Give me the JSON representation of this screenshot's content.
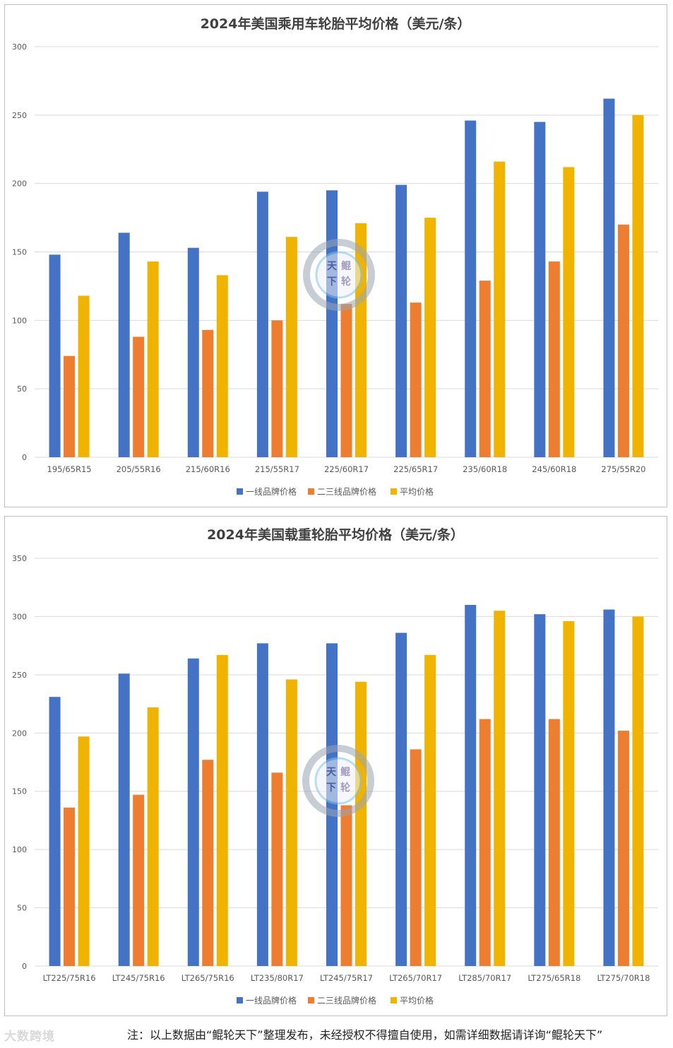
{
  "colors": {
    "tier1": "#4472C4",
    "tier23": "#ED7D31",
    "average": "#F0B400"
  },
  "chart_data": [
    {
      "type": "bar",
      "title": "2024年美国乘用车轮胎平均价格（美元/条）",
      "categories": [
        "195/65R15",
        "205/55R16",
        "215/60R16",
        "215/55R17",
        "225/60R17",
        "225/65R17",
        "235/60R18",
        "245/60R18",
        "275/55R20"
      ],
      "series": [
        {
          "name": "一线品牌价格",
          "values": [
            148,
            164,
            153,
            194,
            195,
            199,
            246,
            245,
            262
          ]
        },
        {
          "name": "二三线品牌价格",
          "values": [
            74,
            88,
            93,
            100,
            112,
            113,
            129,
            143,
            170
          ]
        },
        {
          "name": "平均价格",
          "values": [
            118,
            143,
            133,
            161,
            171,
            175,
            216,
            212,
            250
          ]
        }
      ],
      "y_ticks": [
        "0",
        "50",
        "100",
        "150",
        "200",
        "250",
        "300"
      ],
      "ylim": [
        0,
        300
      ],
      "grid": true,
      "legend_position": "bottom"
    },
    {
      "type": "bar",
      "title": "2024年美国载重轮胎平均价格（美元/条）",
      "categories": [
        "LT225/75R16",
        "LT245/75R16",
        "LT265/75R16",
        "LT235/80R17",
        "LT245/75R17",
        "LT265/70R17",
        "LT285/70R17",
        "LT275/65R18",
        "LT275/70R18"
      ],
      "series": [
        {
          "name": "一线品牌价格",
          "values": [
            231,
            251,
            264,
            277,
            277,
            286,
            310,
            302,
            306
          ]
        },
        {
          "name": "二三线品牌价格",
          "values": [
            136,
            147,
            177,
            166,
            138,
            186,
            212,
            212,
            202
          ]
        },
        {
          "name": "平均价格",
          "values": [
            197,
            222,
            267,
            246,
            244,
            267,
            305,
            296,
            300
          ]
        }
      ],
      "y_ticks": [
        "0",
        "50",
        "100",
        "150",
        "200",
        "250",
        "300",
        "350"
      ],
      "ylim": [
        0,
        350
      ],
      "grid": true,
      "legend_position": "bottom"
    }
  ],
  "footer": {
    "logo": "大数跨境",
    "note": "注：以上数据由“鲲轮天下”整理发布，未经授权不得擅自使用，如需详细数据请详询“鲲轮天下”"
  },
  "watermark": {
    "text": "鲲轮天下",
    "icon": "brand-seal-icon"
  }
}
